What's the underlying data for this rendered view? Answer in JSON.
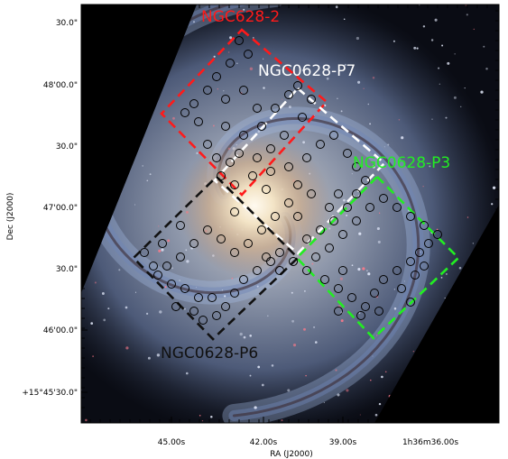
{
  "figure": {
    "xlabel": "RA (J2000)",
    "ylabel": "Dec (J2000)",
    "x_ticks": [
      "45.00s",
      "42.00s",
      "39.00s",
      "1h36m36.00s"
    ],
    "y_ticks": [
      "30.0\"",
      "48'00.0\"",
      "30.0\"",
      "47'00.0\"",
      "30.0\"",
      "46'00.0\"",
      "+15°45'30.0\""
    ]
  },
  "fields": [
    {
      "name": "NGC628-2",
      "color": "#ff1a1a"
    },
    {
      "name": "NGC0628-P7",
      "color": "#ffffff"
    },
    {
      "name": "NGC0628-P3",
      "color": "#22ee22"
    },
    {
      "name": "NGC0628-P6",
      "color": "#111111"
    }
  ],
  "colors": {
    "background": "#000000",
    "galaxy_core": "#f6ead2",
    "arm_blue": "#8ea8d8",
    "marker": "#000000"
  }
}
